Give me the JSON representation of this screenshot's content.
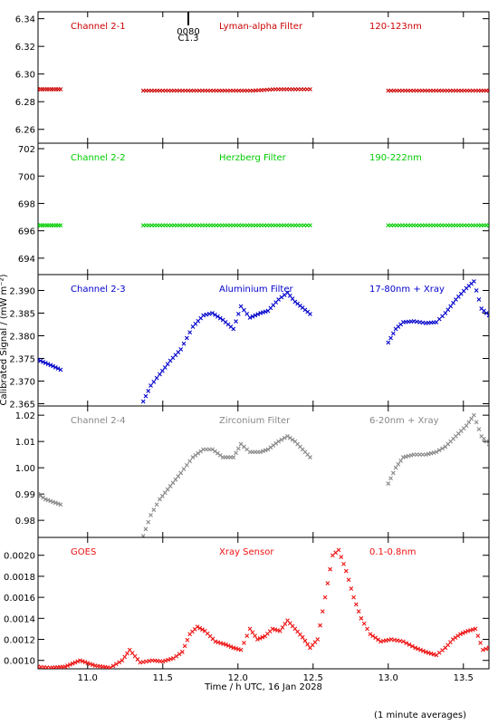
{
  "chart_data": {
    "type": "scatter",
    "xlabel": "Time / h UTC, 16 Jan 2028",
    "ylabel": "Calibrated Signal / (mW m⁻²)",
    "footnote": "(1 minute averages)",
    "xlim": [
      10.67,
      13.67
    ],
    "xticks": [
      11.0,
      11.5,
      12.0,
      12.5,
      13.0,
      13.5
    ],
    "xtick_labels": [
      "11.0",
      "11.5",
      "12.0",
      "12.5",
      "13.0",
      "13.5"
    ],
    "marker": "x",
    "flare_marker": {
      "x": 11.67,
      "label_top": "0080",
      "label_bottom": "C1.3"
    },
    "panels": [
      {
        "label_left": "Channel 2-1",
        "label_mid": "Lyman-alpha Filter",
        "label_right": "120-123nm",
        "color": "#cc0000",
        "ylim": [
          6.25,
          6.345
        ],
        "yticks": [
          6.26,
          6.28,
          6.3,
          6.32,
          6.34
        ],
        "ytick_labels": [
          "6.26",
          "6.28",
          "6.30",
          "6.32",
          "6.34"
        ],
        "series": [
          {
            "x": [
              10.67,
              10.7,
              10.73,
              10.76,
              10.79,
              10.82
            ],
            "y": [
              6.289,
              6.289,
              6.289,
              6.289,
              6.289,
              6.289
            ]
          },
          {
            "x": [
              11.37,
              11.5,
              11.65,
              11.8,
              11.95,
              12.1,
              12.25,
              12.4,
              12.48
            ],
            "y": [
              6.288,
              6.288,
              6.288,
              6.288,
              6.288,
              6.288,
              6.289,
              6.289,
              6.289
            ]
          },
          {
            "x": [
              13.0,
              13.15,
              13.3,
              13.45,
              13.6,
              13.67
            ],
            "y": [
              6.288,
              6.288,
              6.288,
              6.288,
              6.288,
              6.288
            ]
          }
        ]
      },
      {
        "label_left": "Channel 2-2",
        "label_mid": "Herzberg Filter",
        "label_right": "190-222nm",
        "color": "#00cc00",
        "ylim": [
          692.8,
          702.4
        ],
        "yticks": [
          694,
          696,
          698,
          700,
          702
        ],
        "ytick_labels": [
          "694",
          "696",
          "698",
          "700",
          "702"
        ],
        "series": [
          {
            "x": [
              10.67,
              10.7,
              10.73,
              10.76,
              10.79,
              10.82
            ],
            "y": [
              696.4,
              696.4,
              696.4,
              696.4,
              696.4,
              696.4
            ]
          },
          {
            "x": [
              11.37,
              11.5,
              11.65,
              11.8,
              11.95,
              12.1,
              12.25,
              12.4,
              12.48
            ],
            "y": [
              696.4,
              696.4,
              696.4,
              696.4,
              696.4,
              696.4,
              696.4,
              696.4,
              696.4
            ]
          },
          {
            "x": [
              13.0,
              13.15,
              13.3,
              13.45,
              13.6,
              13.67
            ],
            "y": [
              696.4,
              696.4,
              696.4,
              696.4,
              696.4,
              696.4
            ]
          }
        ]
      },
      {
        "label_left": "Channel 2-3",
        "label_mid": "Aluminium Filter",
        "label_right": "17-80nm + Xray",
        "color": "#0000cc",
        "ylim": [
          2.3645,
          2.3935
        ],
        "yticks": [
          2.365,
          2.37,
          2.375,
          2.38,
          2.385,
          2.39
        ],
        "ytick_labels": [
          "2.365",
          "2.370",
          "2.375",
          "2.380",
          "2.385",
          "2.390"
        ],
        "series": [
          {
            "x": [
              10.67,
              10.72,
              10.77,
              10.82
            ],
            "y": [
              2.3747,
              2.374,
              2.3733,
              2.3725
            ]
          },
          {
            "x": [
              11.37,
              11.42,
              11.48,
              11.55,
              11.62,
              11.7,
              11.77,
              11.83,
              11.9,
              11.97,
              12.02,
              12.08,
              12.15,
              12.2,
              12.27,
              12.33,
              12.38,
              12.43,
              12.48
            ],
            "y": [
              2.3655,
              2.369,
              2.3715,
              2.3745,
              2.377,
              2.382,
              2.3845,
              2.385,
              2.3835,
              2.3815,
              2.3865,
              2.384,
              2.385,
              2.3855,
              2.388,
              2.3895,
              2.3875,
              2.3862,
              2.3848
            ]
          },
          {
            "x": [
              13.0,
              13.05,
              13.1,
              13.17,
              13.25,
              13.32,
              13.38,
              13.45,
              13.52,
              13.57,
              13.62,
              13.67
            ],
            "y": [
              2.3785,
              2.3815,
              2.383,
              2.3832,
              2.3828,
              2.383,
              2.385,
              2.388,
              2.3905,
              2.392,
              2.386,
              2.3845
            ]
          }
        ]
      },
      {
        "label_left": "Channel 2-4",
        "label_mid": "Zirconium Filter",
        "label_right": "6-20nm + Xray",
        "color": "#888888",
        "ylim": [
          0.9735,
          1.0235
        ],
        "yticks": [
          0.98,
          0.99,
          1.0,
          1.01,
          1.02
        ],
        "ytick_labels": [
          "0.98",
          "0.99",
          "1.00",
          "1.01",
          "1.02"
        ],
        "series": [
          {
            "x": [
              10.67,
              10.72,
              10.77,
              10.82
            ],
            "y": [
              0.99,
              0.988,
              0.987,
              0.986
            ]
          },
          {
            "x": [
              11.37,
              11.42,
              11.48,
              11.55,
              11.62,
              11.7,
              11.77,
              11.83,
              11.9,
              11.97,
              12.02,
              12.08,
              12.15,
              12.2,
              12.27,
              12.33,
              12.38,
              12.43,
              12.48
            ],
            "y": [
              0.974,
              0.982,
              0.988,
              0.993,
              0.998,
              1.004,
              1.007,
              1.007,
              1.004,
              1.004,
              1.009,
              1.006,
              1.006,
              1.007,
              1.01,
              1.012,
              1.01,
              1.007,
              1.004
            ]
          },
          {
            "x": [
              13.0,
              13.05,
              13.1,
              13.17,
              13.25,
              13.32,
              13.38,
              13.45,
              13.52,
              13.57,
              13.62,
              13.67
            ],
            "y": [
              0.994,
              1.0,
              1.004,
              1.005,
              1.005,
              1.006,
              1.008,
              1.012,
              1.016,
              1.02,
              1.012,
              1.009
            ]
          }
        ]
      },
      {
        "label_left": "GOES",
        "label_mid": "Xray Sensor",
        "label_right": "0.1-0.8nm",
        "color": "#ee1111",
        "ylim": [
          0.00092,
          0.00217
        ],
        "yticks": [
          0.001,
          0.0012,
          0.0014,
          0.0016,
          0.0018,
          0.002
        ],
        "ytick_labels": [
          "0.0010",
          "0.0012",
          "0.0014",
          "0.0016",
          "0.0018",
          "0.0020"
        ],
        "series": [
          {
            "x": [
              10.67,
              10.75,
              10.85,
              10.95,
              11.05,
              11.15,
              11.23,
              11.28,
              11.35,
              11.43,
              11.5,
              11.57,
              11.63,
              11.68,
              11.73,
              11.78,
              11.85,
              11.92,
              11.97,
              12.02,
              12.08,
              12.13,
              12.18,
              12.23,
              12.28,
              12.33,
              12.38,
              12.43,
              12.48,
              12.53,
              12.58,
              12.63,
              12.67,
              12.72,
              12.77,
              12.82,
              12.88,
              12.95,
              13.02,
              13.1,
              13.18,
              13.25,
              13.32,
              13.38,
              13.43,
              13.48,
              13.53,
              13.58,
              13.63,
              13.67
            ],
            "y": [
              0.00094,
              0.00093,
              0.00094,
              0.001,
              0.00095,
              0.00093,
              0.001,
              0.0011,
              0.00098,
              0.001,
              0.00099,
              0.00102,
              0.00108,
              0.00125,
              0.00132,
              0.00128,
              0.00118,
              0.00115,
              0.00112,
              0.0011,
              0.0013,
              0.0012,
              0.00123,
              0.0013,
              0.00128,
              0.00138,
              0.0013,
              0.00122,
              0.00112,
              0.0012,
              0.0016,
              0.002,
              0.00205,
              0.00185,
              0.0016,
              0.0014,
              0.00125,
              0.00118,
              0.0012,
              0.00118,
              0.00112,
              0.00108,
              0.00105,
              0.00112,
              0.0012,
              0.00125,
              0.00128,
              0.0013,
              0.0011,
              0.00112
            ]
          }
        ]
      }
    ]
  }
}
